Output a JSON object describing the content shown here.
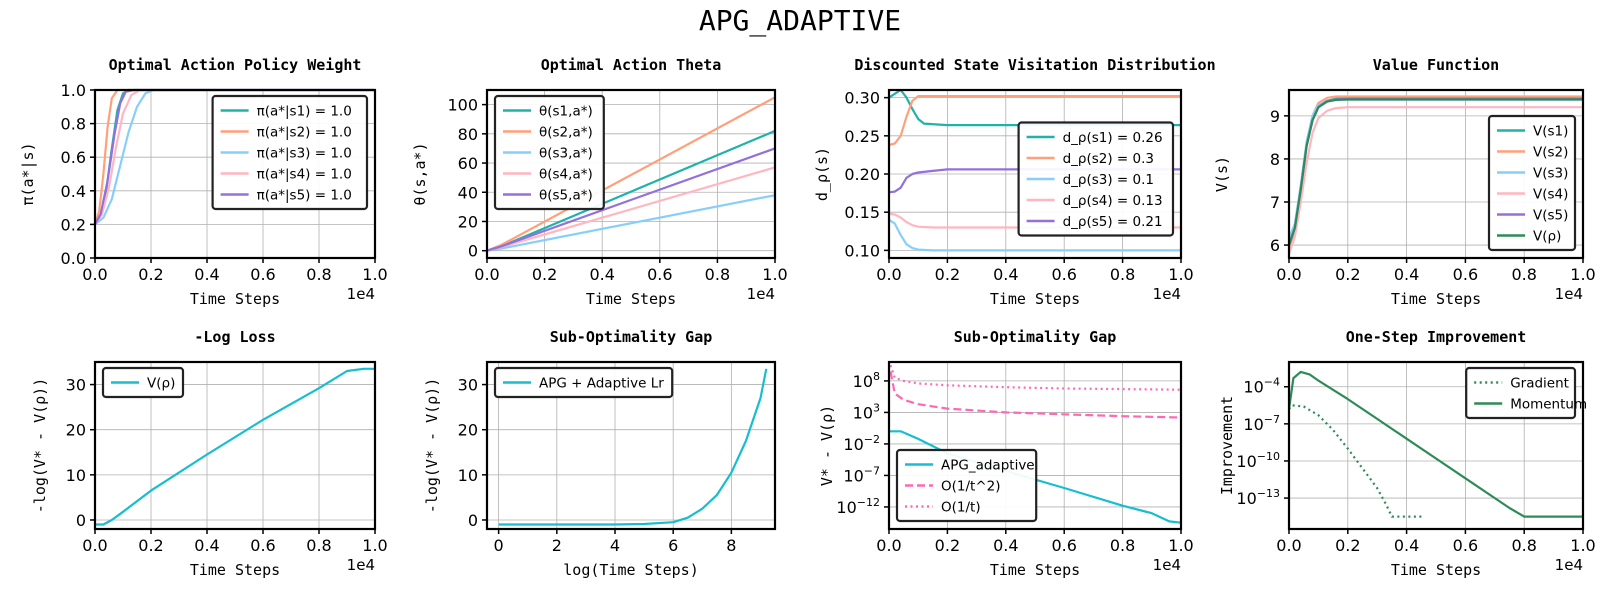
{
  "suptitle": "APG_ADAPTIVE",
  "colors": {
    "s1": "#20b2aa",
    "s2": "#ffa07a",
    "s3": "#87cefa",
    "s4": "#ffb6c1",
    "s5": "#9370db",
    "rho": "#2e8b57",
    "adaptive": "#17becf",
    "bound": "#ff69b4"
  },
  "chart_data": [
    {
      "id": "policy",
      "type": "line",
      "title": "Optimal Action Policy Weight",
      "xlabel": "Time Steps",
      "ylabel": "π(a*|s)",
      "x_offset_label": "1e4",
      "xlim": [
        0,
        10000
      ],
      "ylim": [
        0,
        1.0
      ],
      "xticks": [
        0,
        2000,
        4000,
        6000,
        8000,
        10000
      ],
      "xtick_labels": [
        "0.0",
        "0.2",
        "0.4",
        "0.6",
        "0.8",
        "1.0"
      ],
      "yticks": [
        0,
        0.2,
        0.4,
        0.6,
        0.8,
        1.0
      ],
      "ytick_labels": [
        "0.0",
        "0.2",
        "0.4",
        "0.6",
        "0.8",
        "1.0"
      ],
      "legend": "top-right",
      "series": [
        {
          "name": "π(a*|s1) = 1.0",
          "color": "#20b2aa",
          "x": [
            0,
            200,
            400,
            600,
            800,
            1000,
            1200,
            1400,
            2000,
            10000
          ],
          "values": [
            0.2,
            0.25,
            0.4,
            0.65,
            0.88,
            0.98,
            1.0,
            1.0,
            1.0,
            1.0
          ]
        },
        {
          "name": "π(a*|s2) = 1.0",
          "color": "#ffa07a",
          "x": [
            0,
            150,
            300,
            450,
            600,
            800,
            1000,
            2000,
            10000
          ],
          "values": [
            0.2,
            0.28,
            0.5,
            0.78,
            0.95,
            1.0,
            1.0,
            1.0,
            1.0
          ]
        },
        {
          "name": "π(a*|s3) = 1.0",
          "color": "#87cefa",
          "x": [
            0,
            300,
            600,
            900,
            1200,
            1500,
            1800,
            2100,
            10000
          ],
          "values": [
            0.2,
            0.24,
            0.35,
            0.55,
            0.75,
            0.9,
            0.98,
            1.0,
            1.0
          ]
        },
        {
          "name": "π(a*|s4) = 1.0",
          "color": "#ffb6c1",
          "x": [
            0,
            250,
            500,
            750,
            1000,
            1300,
            1600,
            2000,
            10000
          ],
          "values": [
            0.2,
            0.26,
            0.42,
            0.66,
            0.86,
            0.97,
            1.0,
            1.0,
            1.0
          ]
        },
        {
          "name": "π(a*|s5) = 1.0",
          "color": "#9370db",
          "x": [
            0,
            200,
            450,
            700,
            900,
            1100,
            1400,
            2000,
            10000
          ],
          "values": [
            0.2,
            0.26,
            0.46,
            0.74,
            0.92,
            0.99,
            1.0,
            1.0,
            1.0
          ]
        }
      ]
    },
    {
      "id": "theta",
      "type": "line",
      "title": "Optimal Action Theta",
      "xlabel": "Time Steps",
      "ylabel": "θ(s,a*)",
      "x_offset_label": "1e4",
      "xlim": [
        0,
        10000
      ],
      "ylim": [
        -5,
        110
      ],
      "xticks": [
        0,
        2000,
        4000,
        6000,
        8000,
        10000
      ],
      "xtick_labels": [
        "0.0",
        "0.2",
        "0.4",
        "0.6",
        "0.8",
        "1.0"
      ],
      "yticks": [
        0,
        20,
        40,
        60,
        80,
        100
      ],
      "ytick_labels": [
        "0",
        "20",
        "40",
        "60",
        "80",
        "100"
      ],
      "legend": "top-left",
      "series": [
        {
          "name": "θ(s1,a*)",
          "color": "#20b2aa",
          "x": [
            0,
            500,
            10000
          ],
          "values": [
            0,
            3,
            82
          ]
        },
        {
          "name": "θ(s2,a*)",
          "color": "#ffa07a",
          "x": [
            0,
            500,
            10000
          ],
          "values": [
            0,
            4,
            105
          ]
        },
        {
          "name": "θ(s3,a*)",
          "color": "#87cefa",
          "x": [
            0,
            500,
            10000
          ],
          "values": [
            0,
            1.5,
            38
          ]
        },
        {
          "name": "θ(s4,a*)",
          "color": "#ffb6c1",
          "x": [
            0,
            500,
            10000
          ],
          "values": [
            0,
            2.5,
            57
          ]
        },
        {
          "name": "θ(s5,a*)",
          "color": "#9370db",
          "x": [
            0,
            500,
            10000
          ],
          "values": [
            0,
            3,
            70
          ]
        }
      ]
    },
    {
      "id": "visitation",
      "type": "line",
      "title": "Discounted State Visitation Distribution",
      "xlabel": "Time Steps",
      "ylabel": "d_ρ(s)",
      "x_offset_label": "1e4",
      "xlim": [
        0,
        10000
      ],
      "ylim": [
        0.09,
        0.31
      ],
      "xticks": [
        0,
        2000,
        4000,
        6000,
        8000,
        10000
      ],
      "xtick_labels": [
        "0.0",
        "0.2",
        "0.4",
        "0.6",
        "0.8",
        "1.0"
      ],
      "yticks": [
        0.1,
        0.15,
        0.2,
        0.25,
        0.3
      ],
      "ytick_labels": [
        "0.10",
        "0.15",
        "0.20",
        "0.25",
        "0.30"
      ],
      "legend": "center-right",
      "series": [
        {
          "name": "d_ρ(s1) = 0.26",
          "color": "#20b2aa",
          "x": [
            0,
            200,
            400,
            600,
            800,
            1000,
            1200,
            1600,
            2000,
            10000
          ],
          "values": [
            0.3,
            0.305,
            0.31,
            0.3,
            0.285,
            0.272,
            0.266,
            0.265,
            0.264,
            0.264
          ]
        },
        {
          "name": "d_ρ(s2) = 0.3",
          "color": "#ffa07a",
          "x": [
            0,
            200,
            400,
            600,
            800,
            1000,
            1400,
            10000
          ],
          "values": [
            0.238,
            0.24,
            0.25,
            0.275,
            0.296,
            0.302,
            0.302,
            0.302
          ]
        },
        {
          "name": "d_ρ(s3) = 0.1",
          "color": "#87cefa",
          "x": [
            0,
            200,
            400,
            600,
            800,
            1000,
            1500,
            2000,
            10000
          ],
          "values": [
            0.14,
            0.135,
            0.12,
            0.108,
            0.103,
            0.101,
            0.1,
            0.1,
            0.1
          ]
        },
        {
          "name": "d_ρ(s4) = 0.13",
          "color": "#ffb6c1",
          "x": [
            0,
            200,
            400,
            600,
            800,
            1000,
            1500,
            2000,
            10000
          ],
          "values": [
            0.148,
            0.147,
            0.143,
            0.137,
            0.133,
            0.131,
            0.13,
            0.13,
            0.13
          ]
        },
        {
          "name": "d_ρ(s5) = 0.21",
          "color": "#9370db",
          "x": [
            0,
            200,
            400,
            600,
            800,
            1000,
            1500,
            2000,
            10000
          ],
          "values": [
            0.176,
            0.177,
            0.182,
            0.195,
            0.2,
            0.202,
            0.204,
            0.206,
            0.206
          ]
        }
      ]
    },
    {
      "id": "value",
      "type": "line",
      "title": "Value Function",
      "xlabel": "Time Steps",
      "ylabel": "V(s)",
      "x_offset_label": "1e4",
      "xlim": [
        0,
        10000
      ],
      "ylim": [
        5.7,
        9.6
      ],
      "xticks": [
        0,
        2000,
        4000,
        6000,
        8000,
        10000
      ],
      "xtick_labels": [
        "0.0",
        "0.2",
        "0.4",
        "0.6",
        "0.8",
        "1.0"
      ],
      "yticks": [
        6,
        7,
        8,
        9
      ],
      "ytick_labels": [
        "6",
        "7",
        "8",
        "9"
      ],
      "legend": "bottom-right",
      "series": [
        {
          "name": "V(s1)",
          "color": "#20b2aa",
          "x": [
            0,
            200,
            400,
            600,
            800,
            1000,
            1300,
            1600,
            2000,
            10000
          ],
          "values": [
            6.05,
            6.4,
            7.3,
            8.3,
            8.9,
            9.2,
            9.35,
            9.4,
            9.4,
            9.4
          ]
        },
        {
          "name": "V(s2)",
          "color": "#ffa07a",
          "x": [
            0,
            200,
            400,
            600,
            800,
            1000,
            1300,
            1600,
            2000,
            10000
          ],
          "values": [
            5.9,
            6.35,
            7.3,
            8.35,
            9.0,
            9.3,
            9.42,
            9.45,
            9.45,
            9.45
          ]
        },
        {
          "name": "V(s3)",
          "color": "#87cefa",
          "x": [
            0,
            200,
            400,
            600,
            800,
            1000,
            1300,
            1600,
            2000,
            10000
          ],
          "values": [
            6.15,
            6.5,
            7.4,
            8.4,
            9.0,
            9.25,
            9.35,
            9.38,
            9.38,
            9.38
          ]
        },
        {
          "name": "V(s4)",
          "color": "#ffb6c1",
          "x": [
            0,
            200,
            400,
            600,
            800,
            1000,
            1300,
            1600,
            2000,
            10000
          ],
          "values": [
            5.8,
            6.2,
            7.0,
            7.9,
            8.6,
            8.95,
            9.12,
            9.18,
            9.2,
            9.2
          ]
        },
        {
          "name": "V(s5)",
          "color": "#9370db",
          "x": [
            0,
            200,
            400,
            600,
            800,
            1000,
            1300,
            1600,
            2000,
            10000
          ],
          "values": [
            6.0,
            6.4,
            7.3,
            8.3,
            8.9,
            9.2,
            9.35,
            9.38,
            9.4,
            9.4
          ]
        },
        {
          "name": "V(ρ)",
          "color": "#2e8b57",
          "x": [
            0,
            200,
            400,
            600,
            800,
            1000,
            1300,
            1600,
            2000,
            10000
          ],
          "values": [
            6.0,
            6.4,
            7.3,
            8.3,
            8.9,
            9.2,
            9.33,
            9.37,
            9.38,
            9.38
          ]
        }
      ]
    },
    {
      "id": "logloss",
      "type": "line",
      "title": "-Log Loss",
      "xlabel": "Time Steps",
      "ylabel": "-log(V* - V(ρ))",
      "x_offset_label": "1e4",
      "xlim": [
        0,
        10000
      ],
      "ylim": [
        -2,
        35
      ],
      "xticks": [
        0,
        2000,
        4000,
        6000,
        8000,
        10000
      ],
      "xtick_labels": [
        "0.0",
        "0.2",
        "0.4",
        "0.6",
        "0.8",
        "1.0"
      ],
      "yticks": [
        0,
        10,
        20,
        30
      ],
      "ytick_labels": [
        "0",
        "10",
        "20",
        "30"
      ],
      "legend": "top-left",
      "series": [
        {
          "name": "V(ρ)",
          "color": "#17becf",
          "x": [
            0,
            300,
            600,
            1000,
            2000,
            4000,
            6000,
            8000,
            9000,
            9600,
            10000
          ],
          "values": [
            -1,
            -1,
            0,
            1.8,
            6.5,
            14.5,
            22.2,
            29.2,
            33,
            33.5,
            33.5
          ]
        }
      ]
    },
    {
      "id": "subopt_log",
      "type": "line",
      "title": "Sub-Optimality Gap",
      "xlabel": "log(Time Steps)",
      "ylabel": "-log(V* - V(ρ))",
      "xlim": [
        -0.4,
        9.5
      ],
      "ylim": [
        -2,
        35
      ],
      "xticks": [
        0,
        2,
        4,
        6,
        8
      ],
      "xtick_labels": [
        "0",
        "2",
        "4",
        "6",
        "8"
      ],
      "yticks": [
        0,
        10,
        20,
        30
      ],
      "ytick_labels": [
        "0",
        "10",
        "20",
        "30"
      ],
      "legend": "top-left",
      "series": [
        {
          "name": "APG + Adaptive Lr",
          "color": "#17becf",
          "x": [
            0,
            2,
            4,
            5,
            6,
            6.5,
            7,
            7.5,
            8,
            8.5,
            9,
            9.2
          ],
          "values": [
            -1,
            -1,
            -1,
            -0.9,
            -0.5,
            0.5,
            2.5,
            5.5,
            10.5,
            17.5,
            27,
            33.5
          ]
        }
      ]
    },
    {
      "id": "subopt_rate",
      "type": "line",
      "title": "Sub-Optimality Gap",
      "xlabel": "Time Steps",
      "ylabel": "V* - V(ρ)",
      "x_offset_label": "1e4",
      "xlim": [
        0,
        10000
      ],
      "yscale": "log",
      "ylim_log10": [
        -15.5,
        11
      ],
      "xticks": [
        0,
        2000,
        4000,
        6000,
        8000,
        10000
      ],
      "xtick_labels": [
        "0.0",
        "0.2",
        "0.4",
        "0.6",
        "0.8",
        "1.0"
      ],
      "yticks_log10": [
        8,
        3,
        -2,
        -7,
        -12
      ],
      "ytick_bases": [
        "10",
        "10",
        "10",
        "10",
        "10"
      ],
      "ytick_exps": [
        "8",
        "3",
        "−2",
        "−7",
        "−12"
      ],
      "legend": "bottom-left",
      "series": [
        {
          "name": "APG_adaptive",
          "color": "#17becf",
          "style": "solid",
          "x": [
            0,
            400,
            1000,
            2000,
            4000,
            6000,
            8000,
            9000,
            9600,
            10000
          ],
          "log10_values": [
            0,
            0,
            -1.2,
            -3.5,
            -6.3,
            -9.0,
            -11.8,
            -13,
            -14.3,
            -14.5
          ]
        },
        {
          "name": "O(1/t^2)",
          "color": "#ff69b4",
          "style": "dashed",
          "x": [
            50,
            200,
            500,
            1000,
            2000,
            4000,
            6000,
            8000,
            10000
          ],
          "log10_values": [
            9.5,
            6.0,
            5.0,
            4.3,
            3.6,
            3.0,
            2.7,
            2.4,
            2.2
          ]
        },
        {
          "name": "O(1/t)",
          "color": "#ff69b4",
          "style": "dotted",
          "x": [
            50,
            200,
            500,
            1000,
            2000,
            4000,
            6000,
            8000,
            10000
          ],
          "log10_values": [
            10.5,
            8.5,
            8.0,
            7.6,
            7.3,
            7.0,
            6.8,
            6.7,
            6.6
          ]
        }
      ]
    },
    {
      "id": "improvement",
      "type": "line",
      "title": "One-Step Improvement",
      "xlabel": "Time Steps",
      "ylabel": "Improvement",
      "x_offset_label": "1e4",
      "xlim": [
        0,
        10000
      ],
      "yscale": "log",
      "ylim_log10": [
        -15.5,
        -2
      ],
      "xticks": [
        0,
        2000,
        4000,
        6000,
        8000,
        10000
      ],
      "xtick_labels": [
        "0.0",
        "0.2",
        "0.4",
        "0.6",
        "0.8",
        "1.0"
      ],
      "yticks_log10": [
        -4,
        -7,
        -10,
        -13
      ],
      "ytick_bases": [
        "10",
        "10",
        "10",
        "10"
      ],
      "ytick_exps": [
        "−4",
        "−7",
        "−10",
        "−13"
      ],
      "legend": "top-right",
      "series": [
        {
          "name": "Gradient",
          "color": "#2e8b57",
          "style": "dotted",
          "x": [
            0,
            100,
            500,
            1000,
            1500,
            2000,
            2500,
            3000,
            3300,
            3500,
            4600
          ],
          "log10_values": [
            -5.8,
            -5.5,
            -5.6,
            -6.3,
            -7.5,
            -9.0,
            -10.6,
            -12.2,
            -13.5,
            -14.5,
            -14.5
          ]
        },
        {
          "name": "Momentum",
          "color": "#2e8b57",
          "style": "solid",
          "x": [
            0,
            150,
            400,
            700,
            1000,
            2000,
            3000,
            4000,
            5000,
            6000,
            7000,
            7500,
            8000,
            10000
          ],
          "log10_values": [
            -5.8,
            -3.3,
            -2.8,
            -3.0,
            -3.5,
            -5.0,
            -6.6,
            -8.2,
            -9.8,
            -11.4,
            -13.0,
            -13.8,
            -14.5,
            -14.5
          ]
        }
      ]
    }
  ]
}
